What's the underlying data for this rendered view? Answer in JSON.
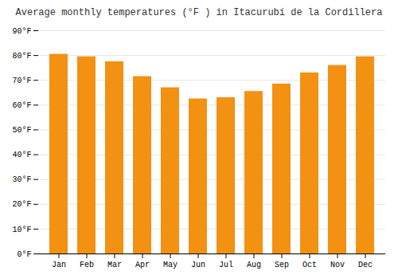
{
  "chart_data": {
    "type": "bar",
    "title": "Average monthly temperatures (°F ) in Itacurubí de la Cordillera",
    "categories": [
      "Jan",
      "Feb",
      "Mar",
      "Apr",
      "May",
      "Jun",
      "Jul",
      "Aug",
      "Sep",
      "Oct",
      "Nov",
      "Dec"
    ],
    "values": [
      80.5,
      79.5,
      77.5,
      71.5,
      67.0,
      62.5,
      63.0,
      65.5,
      68.5,
      73.0,
      76.0,
      79.5
    ],
    "color": "#F39112",
    "ylim": [
      0,
      90
    ],
    "yticks": [
      {
        "value": 0,
        "label": "0°F"
      },
      {
        "value": 10,
        "label": "10°F"
      },
      {
        "value": 20,
        "label": "20°F"
      },
      {
        "value": 30,
        "label": "30°F"
      },
      {
        "value": 40,
        "label": "40°F"
      },
      {
        "value": 50,
        "label": "50°F"
      },
      {
        "value": 60,
        "label": "60°F"
      },
      {
        "value": 70,
        "label": "70°F"
      },
      {
        "value": 80,
        "label": "80°F"
      },
      {
        "value": 90,
        "label": "90°F"
      }
    ],
    "grid": true
  }
}
